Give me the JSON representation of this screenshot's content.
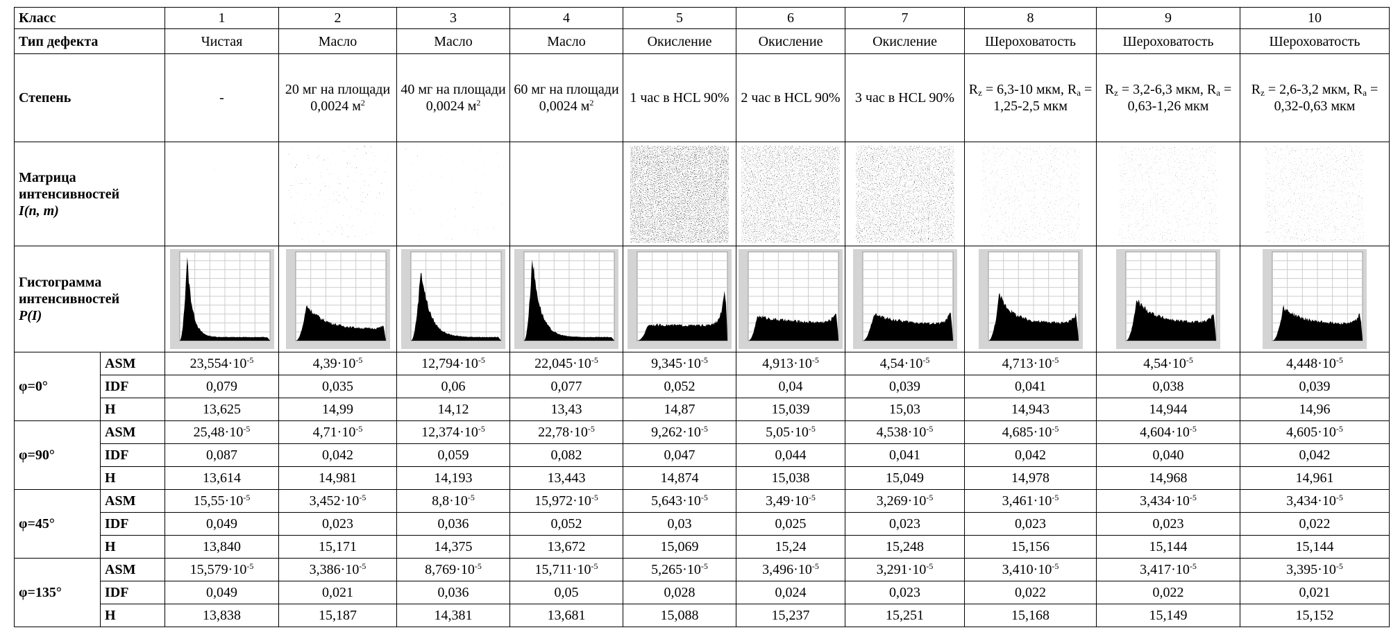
{
  "header": {
    "label": "Класс",
    "classes": [
      "1",
      "2",
      "3",
      "4",
      "5",
      "6",
      "7",
      "8",
      "9",
      "10"
    ]
  },
  "defect": {
    "label": "Тип дефекта",
    "values": [
      "Чистая",
      "Масло",
      "Масло",
      "Масло",
      "Окисление",
      "Окисление",
      "Окисление",
      "Шероховатость",
      "Шероховатость",
      "Шероховатость"
    ]
  },
  "degree": {
    "label": "Степень",
    "values": [
      "-",
      [
        "20 мг на площади 0,0024 м",
        {
          "sup": "2"
        }
      ],
      [
        "40 мг на площади 0,0024 м",
        {
          "sup": "2"
        }
      ],
      [
        "60 мг на площади 0,0024 м",
        {
          "sup": "2"
        }
      ],
      "1 час в HCL 90%",
      "2 час в HCL 90%",
      "3 час в HCL 90%",
      [
        "R",
        {
          "sub": "z"
        },
        " = 6,3-10 мкм, R",
        {
          "sub": "a"
        },
        " = 1,25-2,5 мкм"
      ],
      [
        "R",
        {
          "sub": "z"
        },
        " = 3,2-6,3 мкм, R",
        {
          "sub": "a"
        },
        " = 0,63-1,26 мкм"
      ],
      [
        "R",
        {
          "sub": "z"
        },
        " = 2,6-3,2 мкм, R",
        {
          "sub": "a"
        },
        " = 0,32-0,63 мкм"
      ]
    ]
  },
  "matrix": {
    "label": "Матрица интенсивностей",
    "formula": "I(n, m)"
  },
  "histogram": {
    "label": "Гистограмма интенсивностей",
    "formula": "P(I)"
  },
  "groups": [
    {
      "angle": "φ=0°",
      "rows": [
        {
          "name": "ASM",
          "values": [
            [
              "23,554·10",
              {
                "sup": "-5"
              }
            ],
            [
              "4,39·10",
              {
                "sup": "-5"
              }
            ],
            [
              "12,794·10",
              {
                "sup": "-5"
              }
            ],
            [
              "22,045·10",
              {
                "sup": "-5"
              }
            ],
            [
              "9,345·10",
              {
                "sup": "-5"
              }
            ],
            [
              "4,913·10",
              {
                "sup": "-5"
              }
            ],
            [
              "4,54·10",
              {
                "sup": "-5"
              }
            ],
            [
              "4,713·10",
              {
                "sup": "-5"
              }
            ],
            [
              "4,54·10",
              {
                "sup": "-5"
              }
            ],
            [
              "4,448·10",
              {
                "sup": "-5"
              }
            ]
          ]
        },
        {
          "name": "IDF",
          "values": [
            "0,079",
            "0,035",
            "0,06",
            "0,077",
            "0,052",
            "0,04",
            "0,039",
            "0,041",
            "0,038",
            "0,039"
          ]
        },
        {
          "name": "H",
          "values": [
            "13,625",
            "14,99",
            "14,12",
            "13,43",
            "14,87",
            "15,039",
            "15,03",
            "14,943",
            "14,944",
            "14,96"
          ]
        }
      ]
    },
    {
      "angle": "φ=90°",
      "rows": [
        {
          "name": "ASM",
          "values": [
            [
              "25,48·10",
              {
                "sup": "-5"
              }
            ],
            [
              "4,71·10",
              {
                "sup": "-5"
              }
            ],
            [
              "12,374·10",
              {
                "sup": "-5"
              }
            ],
            [
              "22,78·10",
              {
                "sup": "-5"
              }
            ],
            [
              "9,262·10",
              {
                "sup": "-5"
              }
            ],
            [
              "5,05·10",
              {
                "sup": "-5"
              }
            ],
            [
              "4,538·10",
              {
                "sup": "-5"
              }
            ],
            [
              "4,685·10",
              {
                "sup": "-5"
              }
            ],
            [
              "4,604·10",
              {
                "sup": "-5"
              }
            ],
            [
              "4,605·10",
              {
                "sup": "-5"
              }
            ]
          ]
        },
        {
          "name": "IDF",
          "values": [
            "0,087",
            "0,042",
            "0,059",
            "0,082",
            "0,047",
            "0,044",
            "0,041",
            "0,042",
            "0,040",
            "0,042"
          ]
        },
        {
          "name": "H",
          "values": [
            "13,614",
            "14,981",
            "14,193",
            "13,443",
            "14,874",
            "15,038",
            "15,049",
            "14,978",
            "14,968",
            "14,961"
          ]
        }
      ]
    },
    {
      "angle": "φ=45°",
      "rows": [
        {
          "name": "ASM",
          "values": [
            [
              "15,55·10",
              {
                "sup": "-5"
              }
            ],
            [
              "3,452·10",
              {
                "sup": "-5"
              }
            ],
            [
              "8,8·10",
              {
                "sup": "-5"
              }
            ],
            [
              "15,972·10",
              {
                "sup": "-5"
              }
            ],
            [
              "5,643·10",
              {
                "sup": "-5"
              }
            ],
            [
              "3,49·10",
              {
                "sup": "-5"
              }
            ],
            [
              "3,269·10",
              {
                "sup": "-5"
              }
            ],
            [
              "3,461·10",
              {
                "sup": "-5"
              }
            ],
            [
              "3,434·10",
              {
                "sup": "-5"
              }
            ],
            [
              "3,434·10",
              {
                "sup": "-5"
              }
            ]
          ]
        },
        {
          "name": "IDF",
          "values": [
            "0,049",
            "0,023",
            "0,036",
            "0,052",
            "0,03",
            "0,025",
            "0,023",
            "0,023",
            "0,023",
            "0,022"
          ]
        },
        {
          "name": "H",
          "values": [
            "13,840",
            "15,171",
            "14,375",
            "13,672",
            "15,069",
            "15,24",
            "15,248",
            "15,156",
            "15,144",
            "15,144"
          ]
        }
      ]
    },
    {
      "angle": "φ=135°",
      "rows": [
        {
          "name": "ASM",
          "values": [
            [
              "15,579·10",
              {
                "sup": "-5"
              }
            ],
            [
              "3,386·10",
              {
                "sup": "-5"
              }
            ],
            [
              "8,769·10",
              {
                "sup": "-5"
              }
            ],
            [
              "15,711·10",
              {
                "sup": "-5"
              }
            ],
            [
              "5,265·10",
              {
                "sup": "-5"
              }
            ],
            [
              "3,496·10",
              {
                "sup": "-5"
              }
            ],
            [
              "3,291·10",
              {
                "sup": "-5"
              }
            ],
            [
              "3,410·10",
              {
                "sup": "-5"
              }
            ],
            [
              "3,417·10",
              {
                "sup": "-5"
              }
            ],
            [
              "3,395·10",
              {
                "sup": "-5"
              }
            ]
          ]
        },
        {
          "name": "IDF",
          "values": [
            "0,049",
            "0,021",
            "0,036",
            "0,05",
            "0,028",
            "0,024",
            "0,023",
            "0,022",
            "0,022",
            "0,021"
          ]
        },
        {
          "name": "H",
          "values": [
            "13,838",
            "15,187",
            "14,381",
            "13,681",
            "15,088",
            "15,237",
            "15,251",
            "15,168",
            "15,149",
            "15,152"
          ]
        }
      ]
    }
  ]
}
